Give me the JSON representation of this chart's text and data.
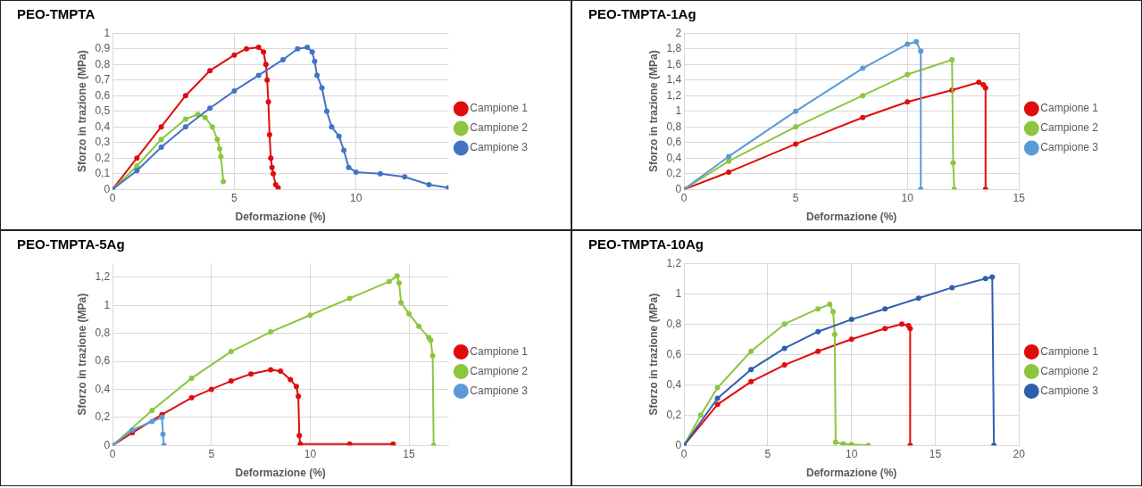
{
  "chart_data": [
    {
      "type": "line",
      "title": "PEO-TMPTA",
      "xlabel": "Deformazione (%)",
      "ylabel": "Sforzo in trazione (MPa)",
      "xlim": [
        0,
        13.8
      ],
      "xticks": [
        0,
        5,
        10
      ],
      "ylim": [
        0,
        1
      ],
      "yticks": [
        0,
        {
          "value": 0.1,
          "label": "0,1"
        },
        {
          "value": 0.2,
          "label": "0,2"
        },
        {
          "value": 0.3,
          "label": "0,3"
        },
        {
          "value": 0.4,
          "label": "0,4"
        },
        {
          "value": 0.5,
          "label": "0,5"
        },
        {
          "value": 0.6,
          "label": "0,6"
        },
        {
          "value": 0.7,
          "label": "0,7"
        },
        {
          "value": 0.8,
          "label": "0,8"
        },
        {
          "value": 0.9,
          "label": "0,9"
        },
        1
      ],
      "grid": true,
      "legend": "right",
      "marker": "circle",
      "series": [
        {
          "name": "Campione 1",
          "color": "#e00c0c",
          "x": [
            0,
            1,
            2,
            3,
            4,
            5,
            5.5,
            6,
            6.2,
            6.3,
            6.35,
            6.4,
            6.45,
            6.5,
            6.55,
            6.6,
            6.7,
            6.8
          ],
          "values": [
            0,
            0.2,
            0.4,
            0.6,
            0.76,
            0.86,
            0.9,
            0.91,
            0.88,
            0.8,
            0.7,
            0.56,
            0.35,
            0.2,
            0.14,
            0.1,
            0.03,
            0.01
          ]
        },
        {
          "name": "Campione 2",
          "color": "#8cc63f",
          "x": [
            0,
            1,
            2,
            3,
            3.5,
            3.8,
            4.1,
            4.3,
            4.4,
            4.45,
            4.55
          ],
          "values": [
            0,
            0.15,
            0.32,
            0.45,
            0.48,
            0.46,
            0.4,
            0.32,
            0.26,
            0.21,
            0.05
          ]
        },
        {
          "name": "Campione 3",
          "color": "#4472c4",
          "x": [
            0,
            1,
            2,
            3,
            4,
            5,
            6,
            7,
            7.6,
            8,
            8.2,
            8.3,
            8.4,
            8.6,
            8.8,
            9,
            9.3,
            9.5,
            9.7,
            10,
            11,
            12,
            13,
            13.8
          ],
          "values": [
            0,
            0.12,
            0.27,
            0.4,
            0.52,
            0.63,
            0.73,
            0.83,
            0.9,
            0.91,
            0.88,
            0.82,
            0.73,
            0.65,
            0.5,
            0.4,
            0.34,
            0.25,
            0.14,
            0.11,
            0.1,
            0.08,
            0.03,
            0.01
          ]
        }
      ]
    },
    {
      "type": "line",
      "title": "PEO-TMPTA-1Ag",
      "xlabel": "Deformazione (%)",
      "ylabel": "Sforzo in trazione (MPa)",
      "xlim": [
        0,
        15
      ],
      "xticks": [
        0,
        5,
        10,
        15
      ],
      "ylim": [
        0,
        2
      ],
      "yticks": [
        0,
        {
          "value": 0.2,
          "label": "0,2"
        },
        {
          "value": 0.4,
          "label": "0,4"
        },
        {
          "value": 0.6,
          "label": "0,6"
        },
        {
          "value": 0.8,
          "label": "0,8"
        },
        1,
        {
          "value": 1.2,
          "label": "1,2"
        },
        {
          "value": 1.4,
          "label": "1,4"
        },
        {
          "value": 1.6,
          "label": "1,6"
        },
        {
          "value": 1.8,
          "label": "1,8"
        },
        2
      ],
      "grid": true,
      "legend": "right",
      "marker": "circle",
      "series": [
        {
          "name": "Campione 1",
          "color": "#e00c0c",
          "x": [
            0,
            2,
            5,
            8,
            10,
            12,
            13.2,
            13.4,
            13.5,
            13.5
          ],
          "values": [
            0,
            0.22,
            0.58,
            0.92,
            1.12,
            1.27,
            1.37,
            1.34,
            1.3,
            0
          ]
        },
        {
          "name": "Campione 2",
          "color": "#8cc63f",
          "x": [
            0,
            2,
            5,
            8,
            10,
            12,
            12.05,
            12.1
          ],
          "values": [
            0,
            0.36,
            0.8,
            1.2,
            1.47,
            1.66,
            0.34,
            0
          ]
        },
        {
          "name": "Campione 3",
          "color": "#5b9bd5",
          "x": [
            0,
            2,
            5,
            8,
            10,
            10.4,
            10.6,
            10.6
          ],
          "values": [
            0,
            0.42,
            1,
            1.55,
            1.86,
            1.89,
            1.77,
            0
          ]
        }
      ]
    },
    {
      "type": "line",
      "title": "PEO-TMPTA-5Ag",
      "xlabel": "Deformazione (%)",
      "ylabel": "Sforzo in trazione (MPa)",
      "xlim": [
        0,
        17
      ],
      "xticks": [
        0,
        5,
        10,
        15
      ],
      "ylim": [
        0,
        1.3
      ],
      "yticks": [
        0,
        {
          "value": 0.2,
          "label": "0,2"
        },
        {
          "value": 0.4,
          "label": "0,4"
        },
        {
          "value": 0.6,
          "label": "0,6"
        },
        {
          "value": 0.8,
          "label": "0,8"
        },
        1,
        {
          "value": 1.2,
          "label": "1,2"
        }
      ],
      "grid": true,
      "legend": "right",
      "marker": "circle",
      "series": [
        {
          "name": "Campione 1",
          "color": "#e00c0c",
          "x": [
            0,
            1,
            2.5,
            4,
            5,
            6,
            7,
            8,
            8.5,
            9,
            9.3,
            9.4,
            9.45,
            9.5,
            12,
            14.2
          ],
          "values": [
            0,
            0.09,
            0.22,
            0.34,
            0.4,
            0.46,
            0.51,
            0.54,
            0.53,
            0.47,
            0.42,
            0.35,
            0.07,
            0.01,
            0.01,
            0.01
          ]
        },
        {
          "name": "Campione 2",
          "color": "#8cc63f",
          "x": [
            0,
            2,
            4,
            6,
            8,
            10,
            12,
            14,
            14.4,
            14.5,
            14.6,
            15,
            15.5,
            16,
            16.1,
            16.2,
            16.25
          ],
          "values": [
            0,
            0.25,
            0.48,
            0.67,
            0.81,
            0.93,
            1.05,
            1.17,
            1.21,
            1.16,
            1.02,
            0.94,
            0.85,
            0.77,
            0.75,
            0.64,
            0
          ]
        },
        {
          "name": "Campione 3",
          "color": "#5b9bd5",
          "x": [
            0,
            1,
            2,
            2.5,
            2.55,
            2.6
          ],
          "values": [
            0,
            0.11,
            0.17,
            0.2,
            0.08,
            0
          ]
        }
      ]
    },
    {
      "type": "line",
      "title": "PEO-TMPTA-10Ag",
      "xlabel": "Deformazione (%)",
      "ylabel": "Sforzo in trazione (MPa)",
      "xlim": [
        0,
        20
      ],
      "xticks": [
        0,
        5,
        10,
        15,
        20
      ],
      "ylim": [
        0,
        1.2
      ],
      "yticks": [
        0,
        {
          "value": 0.2,
          "label": "0,2"
        },
        {
          "value": 0.4,
          "label": "0,4"
        },
        {
          "value": 0.6,
          "label": "0,6"
        },
        {
          "value": 0.8,
          "label": "0,8"
        },
        1,
        {
          "value": 1.2,
          "label": "1,2"
        }
      ],
      "grid": true,
      "legend": "right",
      "marker": "circle",
      "series": [
        {
          "name": "Campione 1",
          "color": "#e00c0c",
          "x": [
            0,
            2,
            4,
            6,
            8,
            10,
            12,
            13,
            13.4,
            13.5,
            13.5
          ],
          "values": [
            0,
            0.27,
            0.42,
            0.53,
            0.62,
            0.7,
            0.77,
            0.8,
            0.79,
            0.77,
            0
          ]
        },
        {
          "name": "Campione 2",
          "color": "#8cc63f",
          "x": [
            0,
            1,
            2,
            4,
            6,
            8,
            8.7,
            8.9,
            9,
            9.05,
            9.5,
            10,
            11
          ],
          "values": [
            0,
            0.2,
            0.38,
            0.62,
            0.8,
            0.9,
            0.93,
            0.88,
            0.73,
            0.02,
            0.01,
            0.005,
            0
          ]
        },
        {
          "name": "Campione 3",
          "color": "#2e5fad",
          "x": [
            0,
            2,
            4,
            6,
            8,
            10,
            12,
            14,
            16,
            18,
            18.4,
            18.5
          ],
          "values": [
            0,
            0.31,
            0.5,
            0.64,
            0.75,
            0.83,
            0.9,
            0.97,
            1.04,
            1.1,
            1.11,
            0
          ]
        }
      ]
    }
  ]
}
